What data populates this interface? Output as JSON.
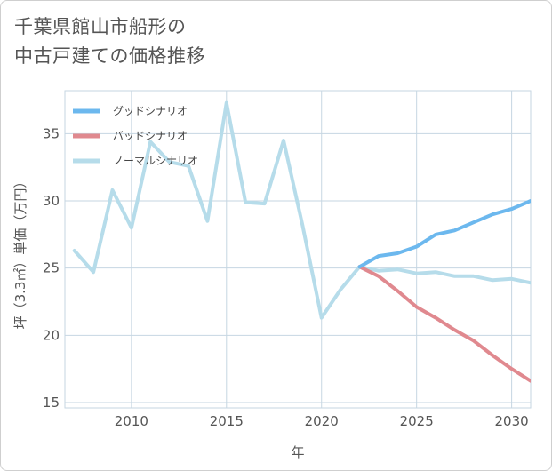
{
  "title_lines": [
    "千葉県館山市船形の",
    "中古戸建ての価格推移"
  ],
  "chart_data": {
    "type": "line",
    "title": "千葉県館山市船形の中古戸建ての価格推移",
    "xlabel": "年",
    "ylabel": "坪（3.3㎡）単価（万円）",
    "xlim": [
      2006.5,
      2031
    ],
    "ylim": [
      14.6,
      38.2
    ],
    "xticks": [
      2010,
      2015,
      2020,
      2025,
      2030
    ],
    "yticks": [
      15,
      20,
      25,
      30,
      35
    ],
    "grid": true,
    "legend_position": "top-left",
    "series": [
      {
        "name": "グッドシナリオ",
        "color": "#6cb8ee",
        "x": [
          2022,
          2023,
          2024,
          2025,
          2026,
          2027,
          2028,
          2029,
          2030,
          2031
        ],
        "y": [
          25.1,
          25.9,
          26.1,
          26.6,
          27.5,
          27.8,
          28.4,
          29.0,
          29.4,
          30.0
        ]
      },
      {
        "name": "バッドシナリオ",
        "color": "#e0898f",
        "x": [
          2022,
          2023,
          2024,
          2025,
          2026,
          2027,
          2028,
          2029,
          2030,
          2031
        ],
        "y": [
          25.1,
          24.4,
          23.3,
          22.1,
          21.3,
          20.4,
          19.6,
          18.5,
          17.5,
          16.6
        ]
      },
      {
        "name": "ノーマルシナリオ",
        "color": "#b6dcea",
        "x": [
          2007,
          2008,
          2009,
          2010,
          2011,
          2012,
          2013,
          2014,
          2015,
          2016,
          2017,
          2018,
          2019,
          2020,
          2021,
          2022,
          2023,
          2024,
          2025,
          2026,
          2027,
          2028,
          2029,
          2030,
          2031
        ],
        "y": [
          26.3,
          24.7,
          30.8,
          28.0,
          34.4,
          32.9,
          32.6,
          28.5,
          37.3,
          29.9,
          29.8,
          34.5,
          28.2,
          21.3,
          23.4,
          25.1,
          24.8,
          24.9,
          24.6,
          24.7,
          24.4,
          24.4,
          24.1,
          24.2,
          23.9
        ]
      }
    ]
  }
}
